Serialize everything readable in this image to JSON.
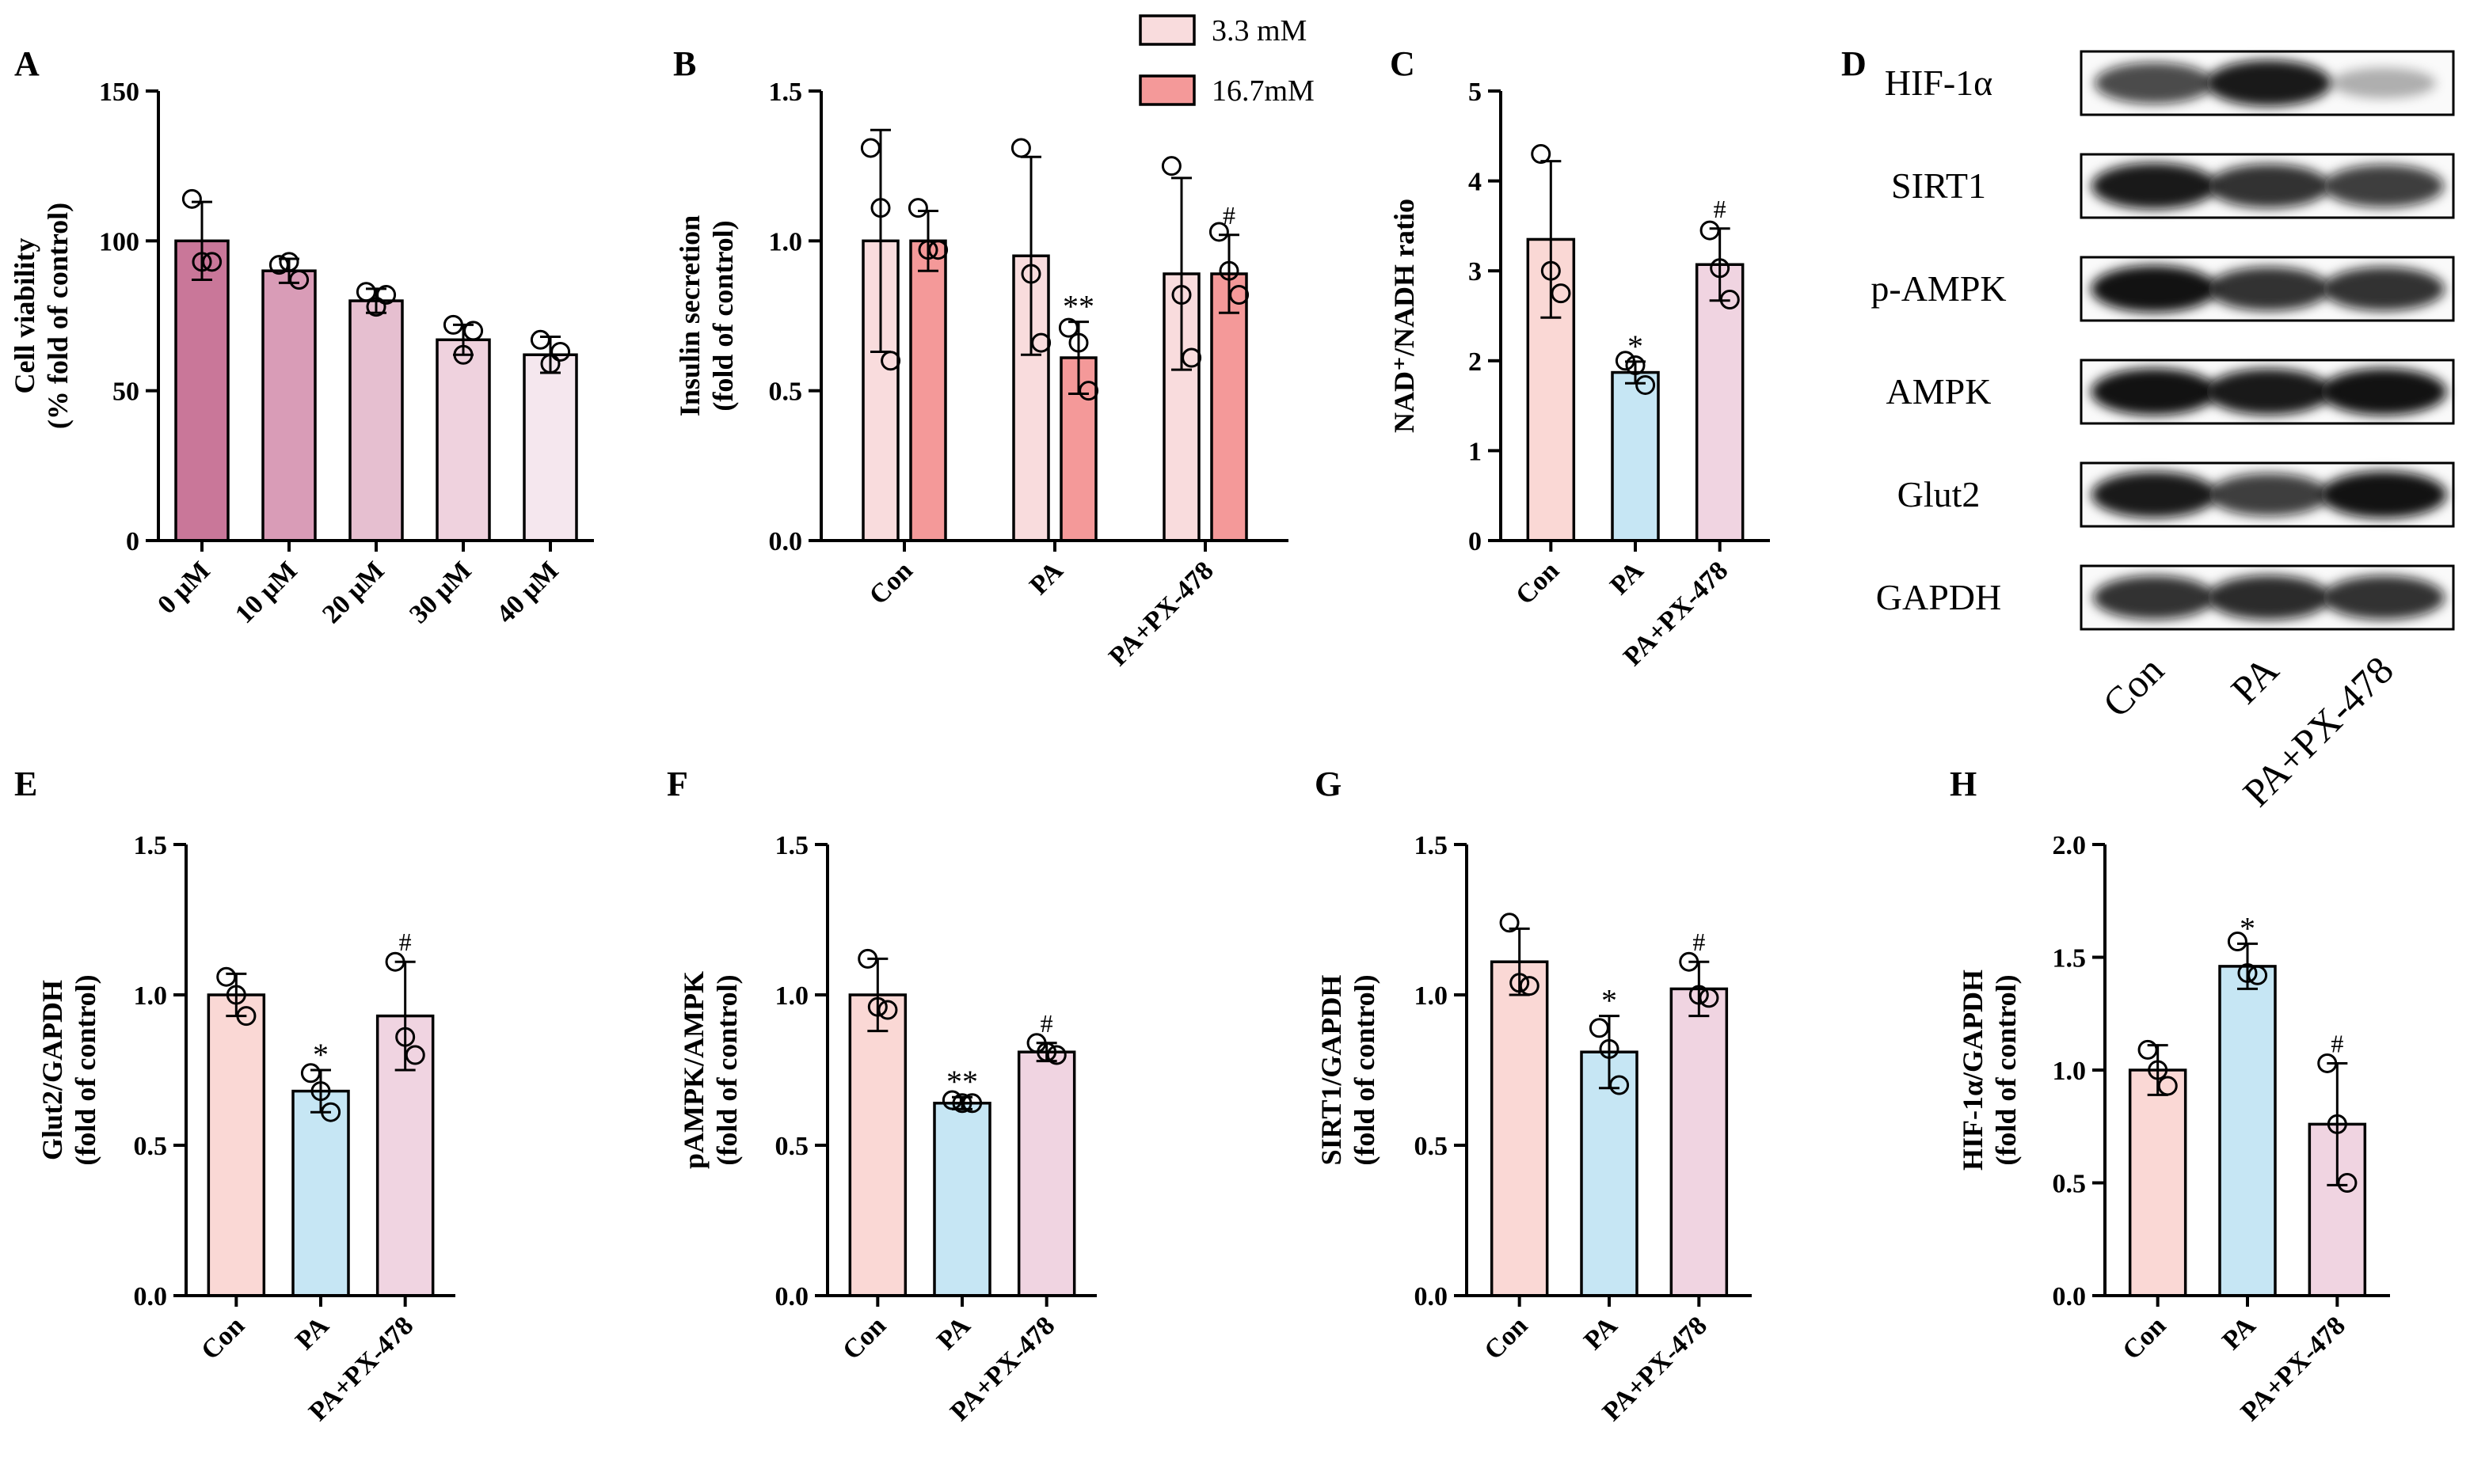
{
  "colors": {
    "A": [
      "#c97799",
      "#d99cb7",
      "#e6bfd0",
      "#efd2de",
      "#f5e7ee"
    ],
    "low": "#f9dcdd",
    "high": "#f49999",
    "con": "#fad8d5",
    "pa": "#c6e6f4",
    "px": "#f0d4e1",
    "axis": "#000000",
    "point_fill": "#ffffff"
  },
  "legend": {
    "items": [
      "3.3 mM",
      "16.7mM"
    ]
  },
  "blot": {
    "panel_label": "D",
    "rows": [
      "HIF-1α",
      "SIRT1",
      "p-AMPK",
      "AMPK",
      "Glut2",
      "GAPDH"
    ],
    "columns": [
      "Con",
      "PA",
      "PA+PX-478"
    ],
    "band_intensity": [
      [
        0.75,
        0.95,
        0.3
      ],
      [
        0.95,
        0.85,
        0.8
      ],
      [
        0.98,
        0.85,
        0.85
      ],
      [
        0.98,
        0.95,
        0.98
      ],
      [
        0.95,
        0.8,
        0.98
      ],
      [
        0.85,
        0.88,
        0.85
      ]
    ]
  },
  "chart_data": [
    {
      "panel": "A",
      "type": "bar",
      "categories": [
        "0 μM",
        "10 μM",
        "20 μM",
        "30 μM",
        "40 μM"
      ],
      "ylabel_lines": [
        "Cell viability",
        "(% fold of control)"
      ],
      "ylim": [
        0,
        150
      ],
      "yticks": [
        "0",
        "50",
        "100",
        "150"
      ],
      "series": [
        {
          "values": [
            100,
            90,
            80,
            67,
            62
          ],
          "errors": [
            13,
            4,
            4,
            5,
            6
          ],
          "points": [
            [
              114,
              93,
              93
            ],
            [
              92,
              93,
              87
            ],
            [
              83,
              78,
              82
            ],
            [
              72,
              62,
              70
            ],
            [
              67,
              59,
              63
            ]
          ]
        }
      ],
      "legend": "none"
    },
    {
      "panel": "B",
      "type": "bar",
      "categories": [
        "Con",
        "PA",
        "PA+PX-478"
      ],
      "ylabel_lines": [
        "Insulin secretion",
        "(fold of control)"
      ],
      "ylim": [
        0,
        1.5
      ],
      "yticks": [
        "0.0",
        "0.5",
        "1.0",
        "1.5"
      ],
      "series": [
        {
          "name": "3.3 mM",
          "values": [
            1.0,
            0.95,
            0.89
          ],
          "errors": [
            0.37,
            0.33,
            0.32
          ],
          "points": [
            [
              1.31,
              1.11,
              0.6
            ],
            [
              1.31,
              0.89,
              0.66
            ],
            [
              1.25,
              0.82,
              0.61
            ]
          ]
        },
        {
          "name": "16.7mM",
          "values": [
            1.0,
            0.61,
            0.89
          ],
          "errors": [
            0.1,
            0.12,
            0.13
          ],
          "points": [
            [
              1.11,
              0.97,
              0.97
            ],
            [
              0.71,
              0.66,
              0.5
            ],
            [
              1.03,
              0.9,
              0.82
            ]
          ]
        }
      ],
      "annotations": [
        {
          "series": 1,
          "category": 1,
          "text": "**"
        },
        {
          "series": 1,
          "category": 2,
          "text": "#"
        }
      ],
      "legend": "top-right"
    },
    {
      "panel": "C",
      "type": "bar",
      "categories": [
        "Con",
        "PA",
        "PA+PX-478"
      ],
      "ylabel": "NAD⁺/NADH ratio",
      "ylim": [
        0,
        5
      ],
      "yticks": [
        "0",
        "1",
        "2",
        "3",
        "4",
        "5"
      ],
      "series": [
        {
          "values": [
            3.35,
            1.87,
            3.07
          ],
          "errors": [
            0.87,
            0.12,
            0.4
          ],
          "points": [
            [
              4.3,
              3.0,
              2.75
            ],
            [
              2.0,
              1.95,
              1.73
            ],
            [
              3.45,
              3.03,
              2.68
            ]
          ]
        }
      ],
      "annotations": [
        {
          "series": 0,
          "category": 1,
          "text": "*"
        },
        {
          "series": 0,
          "category": 2,
          "text": "#"
        }
      ],
      "legend": "none"
    },
    {
      "panel": "E",
      "type": "bar",
      "categories": [
        "Con",
        "PA",
        "PA+PX-478"
      ],
      "ylabel_lines": [
        "Glut2/GAPDH",
        "(fold of control)"
      ],
      "ylim": [
        0,
        1.5
      ],
      "yticks": [
        "0.0",
        "0.5",
        "1.0",
        "1.5"
      ],
      "series": [
        {
          "values": [
            1.0,
            0.68,
            0.93
          ],
          "errors": [
            0.07,
            0.07,
            0.18
          ],
          "points": [
            [
              1.06,
              1.0,
              0.93
            ],
            [
              0.74,
              0.68,
              0.61
            ],
            [
              1.11,
              0.86,
              0.8
            ]
          ]
        }
      ],
      "annotations": [
        {
          "series": 0,
          "category": 1,
          "text": "*"
        },
        {
          "series": 0,
          "category": 2,
          "text": "#"
        }
      ],
      "legend": "none"
    },
    {
      "panel": "F",
      "type": "bar",
      "categories": [
        "Con",
        "PA",
        "PA+PX-478"
      ],
      "ylabel_lines": [
        "pAMPK/AMPK",
        "(fold of control)"
      ],
      "ylim": [
        0,
        1.5
      ],
      "yticks": [
        "0.0",
        "0.5",
        "1.0",
        "1.5"
      ],
      "series": [
        {
          "values": [
            1.0,
            0.64,
            0.81
          ],
          "errors": [
            0.12,
            0.02,
            0.03
          ],
          "points": [
            [
              1.12,
              0.96,
              0.95
            ],
            [
              0.65,
              0.64,
              0.64
            ],
            [
              0.84,
              0.81,
              0.8
            ]
          ]
        }
      ],
      "annotations": [
        {
          "series": 0,
          "category": 1,
          "text": "**"
        },
        {
          "series": 0,
          "category": 2,
          "text": "#"
        }
      ],
      "legend": "none"
    },
    {
      "panel": "G",
      "type": "bar",
      "categories": [
        "Con",
        "PA",
        "PA+PX-478"
      ],
      "ylabel_lines": [
        "SIRT1/GAPDH",
        "(fold of control)"
      ],
      "ylim": [
        0,
        1.5
      ],
      "yticks": [
        "0.0",
        "0.5",
        "1.0",
        "1.5"
      ],
      "series": [
        {
          "values": [
            1.11,
            0.81,
            1.02
          ],
          "errors": [
            0.11,
            0.12,
            0.09
          ],
          "points": [
            [
              1.24,
              1.04,
              1.03
            ],
            [
              0.89,
              0.82,
              0.7
            ],
            [
              1.11,
              1.0,
              0.99
            ]
          ]
        }
      ],
      "annotations": [
        {
          "series": 0,
          "category": 1,
          "text": "*"
        },
        {
          "series": 0,
          "category": 2,
          "text": "#"
        }
      ],
      "legend": "none"
    },
    {
      "panel": "H",
      "type": "bar",
      "categories": [
        "Con",
        "PA",
        "PA+PX-478"
      ],
      "ylabel_lines": [
        "HIF-1α/GAPDH",
        "(fold of control)"
      ],
      "ylim": [
        0,
        2.0
      ],
      "yticks": [
        "0.0",
        "0.5",
        "1.0",
        "1.5",
        "2.0"
      ],
      "series": [
        {
          "values": [
            1.0,
            1.46,
            0.76
          ],
          "errors": [
            0.11,
            0.1,
            0.27
          ],
          "points": [
            [
              1.09,
              1.0,
              0.93
            ],
            [
              1.57,
              1.43,
              1.42
            ],
            [
              1.03,
              0.76,
              0.5
            ]
          ]
        }
      ],
      "annotations": [
        {
          "series": 0,
          "category": 1,
          "text": "*"
        },
        {
          "series": 0,
          "category": 2,
          "text": "#"
        }
      ],
      "legend": "none"
    }
  ]
}
